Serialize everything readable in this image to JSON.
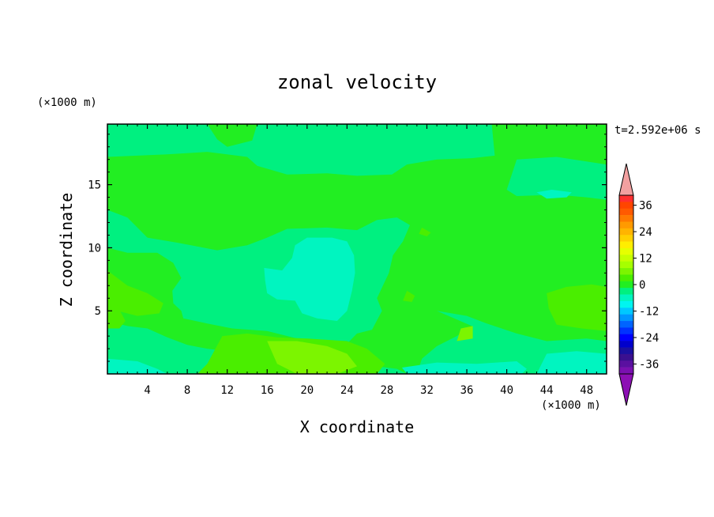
{
  "chart_data": {
    "type": "heatmap",
    "title": "zonal velocity",
    "xlabel": "X coordinate",
    "ylabel": "Z coordinate",
    "x_unit": "(×1000 m)",
    "y_unit": "(×1000 m)",
    "time_label": "t=2.592e+06 s",
    "xlim": [
      0,
      50
    ],
    "ylim": [
      0,
      19.8
    ],
    "x_ticks": [
      4,
      8,
      12,
      16,
      20,
      24,
      28,
      32,
      36,
      40,
      44,
      48
    ],
    "y_ticks": [
      5,
      10,
      15
    ],
    "colorbar": {
      "ticks": [
        36,
        24,
        12,
        0,
        -12,
        -24,
        -36
      ],
      "levels": [
        {
          "value": 42,
          "color": "#f2a0a0"
        },
        {
          "value": 39,
          "color": "#ff3030"
        },
        {
          "value": 36,
          "color": "#ff4500"
        },
        {
          "value": 33,
          "color": "#ff5a00"
        },
        {
          "value": 30,
          "color": "#ff7a00"
        },
        {
          "value": 27,
          "color": "#ff9a00"
        },
        {
          "value": 24,
          "color": "#ffb400"
        },
        {
          "value": 21,
          "color": "#ffd000"
        },
        {
          "value": 18,
          "color": "#ffee00"
        },
        {
          "value": 15,
          "color": "#e6ff00"
        },
        {
          "value": 12,
          "color": "#c6ff00"
        },
        {
          "value": 9,
          "color": "#a6ff00"
        },
        {
          "value": 6,
          "color": "#7cf500"
        },
        {
          "value": 3,
          "color": "#4aee00"
        },
        {
          "value": 0,
          "color": "#22ee22"
        },
        {
          "value": -3,
          "color": "#00f080"
        },
        {
          "value": -6,
          "color": "#00f5c0"
        },
        {
          "value": -9,
          "color": "#00f5f0"
        },
        {
          "value": -12,
          "color": "#00c8ff"
        },
        {
          "value": -15,
          "color": "#0096ff"
        },
        {
          "value": -18,
          "color": "#0064ff"
        },
        {
          "value": -21,
          "color": "#0032ff"
        },
        {
          "value": -24,
          "color": "#0000ff"
        },
        {
          "value": -27,
          "color": "#0000cc"
        },
        {
          "value": -30,
          "color": "#1a10a0"
        },
        {
          "value": -33,
          "color": "#3a1090"
        },
        {
          "value": -36,
          "color": "#5a10a0"
        },
        {
          "value": -39,
          "color": "#7a10b0"
        },
        {
          "value": -42,
          "color": "#8c10b4"
        }
      ]
    },
    "regions": [
      {
        "value": 0,
        "points": [
          [
            0,
            19.8
          ],
          [
            50,
            19.8
          ],
          [
            50,
            0
          ],
          [
            0,
            0
          ]
        ]
      },
      {
        "value": -3,
        "points": [
          [
            0,
            17.2
          ],
          [
            6,
            17.4
          ],
          [
            10,
            17.6
          ],
          [
            14,
            17.2
          ],
          [
            15,
            16.5
          ],
          [
            18,
            15.8
          ],
          [
            22,
            15.9
          ],
          [
            25,
            15.7
          ],
          [
            28.5,
            15.8
          ],
          [
            30,
            16.6
          ],
          [
            33,
            17.0
          ],
          [
            36.5,
            17.1
          ],
          [
            38.8,
            17.3
          ],
          [
            38.5,
            19.8
          ],
          [
            15,
            19.8
          ],
          [
            14.5,
            18.5
          ],
          [
            12,
            18.0
          ],
          [
            11,
            18.6
          ],
          [
            10,
            19.8
          ],
          [
            0,
            19.8
          ]
        ]
      },
      {
        "value": -3,
        "points": [
          [
            41,
            17.0
          ],
          [
            45,
            17.2
          ],
          [
            50,
            16.6
          ],
          [
            50,
            13.8
          ],
          [
            48,
            14.0
          ],
          [
            45,
            14.2
          ],
          [
            41,
            14.1
          ],
          [
            40,
            14.6
          ]
        ]
      },
      {
        "value": -3,
        "points": [
          [
            0,
            13.0
          ],
          [
            2,
            12.4
          ],
          [
            4,
            10.8
          ],
          [
            7,
            10.4
          ],
          [
            11,
            9.8
          ],
          [
            14,
            10.2
          ],
          [
            16,
            10.8
          ],
          [
            18,
            11.5
          ],
          [
            22,
            11.6
          ],
          [
            25,
            11.4
          ],
          [
            27,
            12.2
          ],
          [
            29,
            12.4
          ],
          [
            30.3,
            11.8
          ],
          [
            29.6,
            10.5
          ],
          [
            28.6,
            9.4
          ],
          [
            28.2,
            8.0
          ],
          [
            27.0,
            6.0
          ],
          [
            27.5,
            5.0
          ],
          [
            26.5,
            3.5
          ],
          [
            25,
            3.2
          ],
          [
            24,
            2.4
          ],
          [
            22,
            2.6
          ],
          [
            19,
            2.8
          ],
          [
            16,
            3.4
          ],
          [
            12.5,
            3.6
          ],
          [
            10,
            4.0
          ],
          [
            7.6,
            4.4
          ],
          [
            7.4,
            5.0
          ],
          [
            6.6,
            5.6
          ],
          [
            6.5,
            6.6
          ],
          [
            7.4,
            7.6
          ],
          [
            6.6,
            8.8
          ],
          [
            5,
            9.6
          ],
          [
            2,
            9.6
          ],
          [
            0,
            10.0
          ]
        ]
      },
      {
        "value": -3,
        "points": [
          [
            0,
            4.2
          ],
          [
            2,
            3.8
          ],
          [
            4,
            3.6
          ],
          [
            6,
            2.9
          ],
          [
            8,
            2.3
          ],
          [
            10,
            2.0
          ],
          [
            14,
            1.6
          ],
          [
            20,
            1.2
          ],
          [
            25,
            0.8
          ],
          [
            29,
            0.4
          ],
          [
            30,
            0
          ],
          [
            0,
            0
          ]
        ]
      },
      {
        "value": -3,
        "points": [
          [
            33,
            5.0
          ],
          [
            36,
            4.6
          ],
          [
            38,
            4.0
          ],
          [
            41,
            3.2
          ],
          [
            44,
            2.6
          ],
          [
            48,
            2.8
          ],
          [
            50,
            2.6
          ],
          [
            50,
            0
          ],
          [
            31,
            0
          ],
          [
            31.5,
            1.2
          ],
          [
            33,
            2.2
          ],
          [
            35,
            3.0
          ],
          [
            36.5,
            3.8
          ]
        ]
      },
      {
        "value": 3,
        "points": [
          [
            0,
            8.2
          ],
          [
            2,
            7.0
          ],
          [
            4,
            6.4
          ],
          [
            5.6,
            5.6
          ],
          [
            5.2,
            4.8
          ],
          [
            3,
            4.6
          ],
          [
            1,
            5.0
          ],
          [
            0,
            5.4
          ]
        ]
      },
      {
        "value": 3,
        "points": [
          [
            0,
            5.9
          ],
          [
            1.0,
            5.4
          ],
          [
            1.8,
            4.2
          ],
          [
            1.2,
            3.6
          ],
          [
            0,
            3.6
          ]
        ]
      },
      {
        "value": 3,
        "points": [
          [
            11.5,
            3.0
          ],
          [
            14,
            3.2
          ],
          [
            17,
            2.9
          ],
          [
            20,
            2.8
          ],
          [
            24,
            2.6
          ],
          [
            26,
            2.0
          ],
          [
            27.8,
            0.8
          ],
          [
            27.0,
            0
          ],
          [
            9,
            0
          ],
          [
            10,
            0.8
          ]
        ]
      },
      {
        "value": 3,
        "points": [
          [
            44.0,
            6.4
          ],
          [
            46,
            6.9
          ],
          [
            48.5,
            7.1
          ],
          [
            50,
            6.9
          ],
          [
            50,
            3.4
          ],
          [
            47.5,
            3.6
          ],
          [
            45,
            3.9
          ],
          [
            44.2,
            5.2
          ]
        ]
      },
      {
        "value": 3,
        "points": [
          [
            30.0,
            6.6
          ],
          [
            30.8,
            6.2
          ],
          [
            30.5,
            5.7
          ],
          [
            29.6,
            5.8
          ]
        ]
      },
      {
        "value": 3,
        "points": [
          [
            31.5,
            11.6
          ],
          [
            32.4,
            11.2
          ],
          [
            32.0,
            10.9
          ],
          [
            31.2,
            11.1
          ]
        ]
      },
      {
        "value": 6,
        "points": [
          [
            16,
            2.6
          ],
          [
            19,
            2.6
          ],
          [
            22,
            2.2
          ],
          [
            24,
            1.6
          ],
          [
            25,
            0.6
          ],
          [
            23,
            0
          ],
          [
            19,
            0
          ],
          [
            17,
            0.8
          ]
        ]
      },
      {
        "value": 6,
        "points": [
          [
            35,
            2.6
          ],
          [
            36.6,
            2.8
          ],
          [
            36.6,
            3.8
          ],
          [
            35.4,
            3.6
          ]
        ]
      },
      {
        "value": -6,
        "points": [
          [
            15.7,
            8.4
          ],
          [
            17.5,
            8.2
          ],
          [
            18.5,
            9.2
          ],
          [
            18.8,
            10.2
          ],
          [
            20,
            10.8
          ],
          [
            22.5,
            10.8
          ],
          [
            24,
            10.5
          ],
          [
            24.7,
            9.4
          ],
          [
            24.8,
            8.0
          ],
          [
            24.5,
            6.6
          ],
          [
            24.0,
            5.0
          ],
          [
            23.0,
            4.2
          ],
          [
            21,
            4.4
          ],
          [
            19.5,
            4.8
          ],
          [
            18.8,
            5.8
          ],
          [
            17,
            5.9
          ],
          [
            16,
            6.4
          ],
          [
            15.8,
            7.4
          ]
        ]
      },
      {
        "value": -6,
        "points": [
          [
            29.5,
            0.5
          ],
          [
            33,
            0.9
          ],
          [
            37,
            0.8
          ],
          [
            41,
            1.0
          ],
          [
            42,
            0.4
          ],
          [
            41.5,
            0
          ],
          [
            30,
            0
          ]
        ]
      },
      {
        "value": -6,
        "points": [
          [
            0,
            1.2
          ],
          [
            3,
            1.0
          ],
          [
            5,
            0.4
          ],
          [
            6,
            0
          ],
          [
            0,
            0
          ]
        ]
      },
      {
        "value": -6,
        "points": [
          [
            44,
            1.6
          ],
          [
            47,
            1.8
          ],
          [
            50,
            1.6
          ],
          [
            50,
            0
          ],
          [
            43,
            0
          ],
          [
            43.5,
            0.8
          ]
        ]
      },
      {
        "value": -6,
        "points": [
          [
            43,
            14.4
          ],
          [
            44.5,
            14.6
          ],
          [
            46.5,
            14.4
          ],
          [
            46,
            14.0
          ],
          [
            44,
            13.9
          ]
        ]
      }
    ]
  }
}
